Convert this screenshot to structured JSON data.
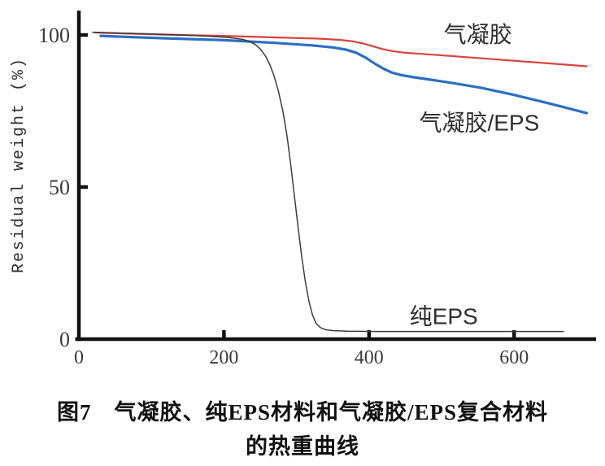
{
  "figure": {
    "caption_line1": "图7　气凝胶、纯EPS材料和气凝胶/EPS复合材料",
    "caption_line2": "的热重曲线"
  },
  "chart_data": {
    "type": "line",
    "title": "",
    "xlabel": "",
    "ylabel": "Residual weight (%)",
    "xlim": [
      0,
      710
    ],
    "ylim": [
      0,
      108
    ],
    "x_ticks": [
      0,
      200,
      400,
      600
    ],
    "y_ticks": [
      0,
      50,
      100
    ],
    "grid": false,
    "legend_position": "inline-annotations",
    "background_color": "#ffffff",
    "axis_color": "#111111",
    "series": [
      {
        "name": "气凝胶",
        "id": "aerogel",
        "color": "#d8433b",
        "line_width": 2.2,
        "points": [
          [
            22,
            100.8
          ],
          [
            60,
            100.5
          ],
          [
            120,
            100.1
          ],
          [
            200,
            99.7
          ],
          [
            270,
            99.2
          ],
          [
            330,
            98.8
          ],
          [
            360,
            98.4
          ],
          [
            378,
            97.9
          ],
          [
            392,
            97.2
          ],
          [
            405,
            96.3
          ],
          [
            418,
            95.4
          ],
          [
            432,
            94.7
          ],
          [
            448,
            94.2
          ],
          [
            465,
            93.9
          ],
          [
            495,
            93.4
          ],
          [
            535,
            92.7
          ],
          [
            585,
            91.8
          ],
          [
            640,
            90.8
          ],
          [
            700,
            89.7
          ]
        ]
      },
      {
        "name": "气凝胶/EPS",
        "id": "aerogel-eps",
        "color": "#2a6fc4",
        "line_width": 3.2,
        "points": [
          [
            30,
            99.7
          ],
          [
            60,
            99.4
          ],
          [
            120,
            98.9
          ],
          [
            200,
            98.3
          ],
          [
            270,
            97.4
          ],
          [
            320,
            96.6
          ],
          [
            350,
            95.9
          ],
          [
            368,
            95.2
          ],
          [
            382,
            94.2
          ],
          [
            395,
            92.6
          ],
          [
            408,
            90.6
          ],
          [
            420,
            88.9
          ],
          [
            432,
            87.6
          ],
          [
            445,
            86.8
          ],
          [
            462,
            86.1
          ],
          [
            485,
            85.3
          ],
          [
            515,
            84.2
          ],
          [
            555,
            82.6
          ],
          [
            600,
            80.3
          ],
          [
            645,
            77.7
          ],
          [
            678,
            75.7
          ],
          [
            700,
            74.3
          ]
        ]
      },
      {
        "name": "纯EPS",
        "id": "pure-eps",
        "color": "#3c3c3c",
        "line_width": 1.5,
        "points": [
          [
            19,
            100.9
          ],
          [
            60,
            100.6
          ],
          [
            120,
            100.2
          ],
          [
            170,
            99.7
          ],
          [
            205,
            99.2
          ],
          [
            225,
            98.6
          ],
          [
            235,
            97.9
          ],
          [
            243,
            96.9
          ],
          [
            250,
            95.4
          ],
          [
            257,
            93.2
          ],
          [
            263,
            90.4
          ],
          [
            269,
            86.6
          ],
          [
            275,
            81.6
          ],
          [
            281,
            75.2
          ],
          [
            287,
            66.8
          ],
          [
            292,
            57.4
          ],
          [
            297,
            47.4
          ],
          [
            302,
            37.2
          ],
          [
            307,
            27.6
          ],
          [
            312,
            19.2
          ],
          [
            317,
            12.6
          ],
          [
            322,
            8.0
          ],
          [
            327,
            5.2
          ],
          [
            333,
            3.8
          ],
          [
            340,
            3.1
          ],
          [
            350,
            2.8
          ],
          [
            370,
            2.6
          ],
          [
            410,
            2.5
          ],
          [
            480,
            2.5
          ],
          [
            560,
            2.5
          ],
          [
            620,
            2.5
          ],
          [
            668,
            2.5
          ]
        ]
      }
    ],
    "annotations": [
      {
        "text": "气凝胶",
        "series": "aerogel",
        "x": 550,
        "y": 100.3
      },
      {
        "text": "气凝胶/EPS",
        "series": "aerogel-eps",
        "x": 552,
        "y": 71.3
      },
      {
        "text": "纯EPS",
        "series": "pure-eps",
        "x": 503,
        "y": 7.6
      }
    ]
  }
}
